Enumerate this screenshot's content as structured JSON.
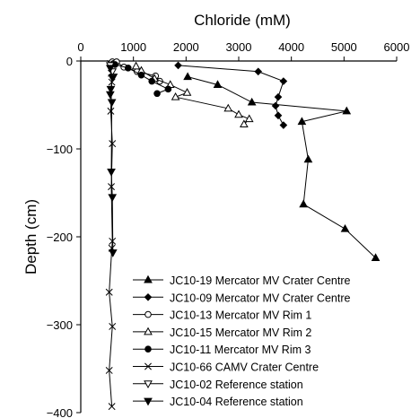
{
  "chart_data": {
    "type": "line",
    "xlabel": "Chloride (mM)",
    "ylabel": "Depth (cm)",
    "xlim": [
      0,
      6000
    ],
    "ylim": [
      -400,
      0
    ],
    "x_axis_position": "top",
    "x_ticks": [
      0,
      1000,
      2000,
      3000,
      4000,
      5000,
      6000
    ],
    "y_ticks": [
      0,
      -100,
      -200,
      -300,
      -400
    ],
    "x_tick_labels": [
      "0",
      "1000",
      "2000",
      "3000",
      "4000",
      "5000",
      "6000"
    ],
    "y_tick_labels": [
      "0",
      "−100",
      "−200",
      "−300",
      "−400"
    ],
    "grid": false,
    "legend_position": "bottom-right",
    "series": [
      {
        "name": "JC10-19 Mercator MV Crater Centre",
        "marker": "triangle-filled",
        "points": [
          [
            2030,
            -18
          ],
          [
            2600,
            -27
          ],
          [
            3250,
            -47
          ],
          [
            5050,
            -57
          ],
          [
            4200,
            -69
          ],
          [
            4320,
            -112
          ],
          [
            4230,
            -163
          ],
          [
            5020,
            -191
          ],
          [
            5600,
            -224
          ]
        ]
      },
      {
        "name": "JC10-09 Mercator MV Crater Centre",
        "marker": "diamond-filled",
        "points": [
          [
            1850,
            -5
          ],
          [
            3370,
            -12
          ],
          [
            3850,
            -23
          ],
          [
            3750,
            -41
          ],
          [
            3700,
            -51
          ],
          [
            3750,
            -62
          ],
          [
            3850,
            -73
          ]
        ]
      },
      {
        "name": "JC10-13 Mercator MV Rim 1",
        "marker": "circle-open",
        "points": [
          [
            600,
            -1
          ],
          [
            620,
            -3
          ],
          [
            680,
            -1
          ],
          [
            820,
            -7
          ],
          [
            1070,
            -12
          ],
          [
            1420,
            -17
          ],
          [
            1500,
            -23
          ]
        ]
      },
      {
        "name": "JC10-15 Mercator MV Rim 2",
        "marker": "triangle-open",
        "points": [
          [
            1050,
            -6
          ],
          [
            1150,
            -11
          ],
          [
            1400,
            -20
          ],
          [
            1700,
            -27
          ],
          [
            2020,
            -36
          ],
          [
            1800,
            -41
          ],
          [
            2800,
            -54
          ],
          [
            3000,
            -61
          ],
          [
            3200,
            -66
          ],
          [
            3100,
            -72
          ]
        ]
      },
      {
        "name": "JC10-11 Mercator MV Rim 3",
        "marker": "circle-filled",
        "points": [
          [
            650,
            -4
          ],
          [
            900,
            -8
          ],
          [
            1150,
            -16
          ],
          [
            1350,
            -23
          ],
          [
            1660,
            -32
          ],
          [
            1450,
            -37
          ]
        ]
      },
      {
        "name": "JC10-66 CAMV Crater Centre",
        "marker": "cross",
        "points": [
          [
            560,
            -3
          ],
          [
            580,
            -14
          ],
          [
            590,
            -24
          ],
          [
            570,
            -57
          ],
          [
            600,
            -94
          ],
          [
            580,
            -143
          ],
          [
            600,
            -205
          ],
          [
            590,
            -213
          ],
          [
            540,
            -263
          ],
          [
            600,
            -302
          ],
          [
            540,
            -352
          ],
          [
            590,
            -393
          ]
        ]
      },
      {
        "name": "JC10-02 Reference station",
        "marker": "triangle-down-open",
        "points": [
          [
            560,
            -5
          ],
          [
            600,
            -12
          ],
          [
            620,
            -18
          ]
        ]
      },
      {
        "name": "JC10-04 Reference station",
        "marker": "triangle-down-filled",
        "points": [
          [
            560,
            -8
          ],
          [
            600,
            -19
          ],
          [
            570,
            -32
          ],
          [
            560,
            -38
          ],
          [
            590,
            -47
          ],
          [
            580,
            -126
          ],
          [
            600,
            -155
          ],
          [
            610,
            -218
          ]
        ]
      }
    ]
  }
}
